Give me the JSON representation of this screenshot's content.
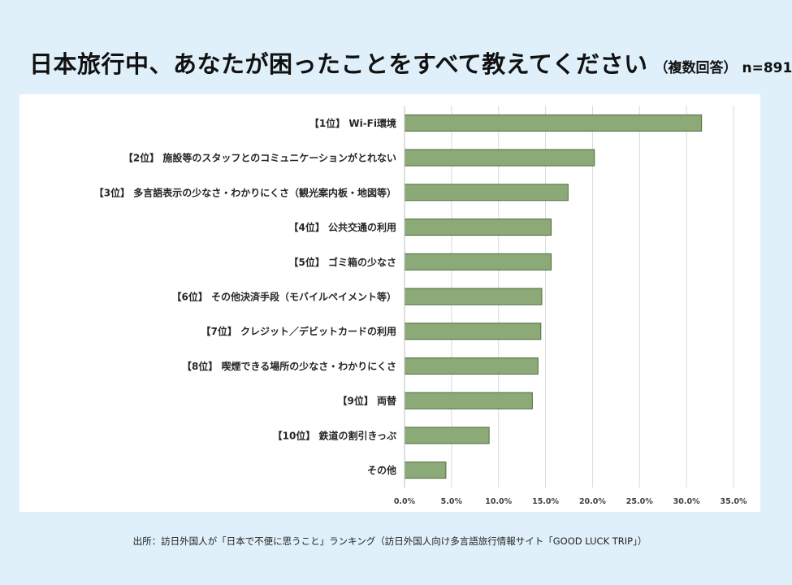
{
  "title": {
    "main": "日本旅行中、あなたが困ったことをすべて教えてください",
    "sub": "（複数回答）",
    "n": "n=891"
  },
  "source": "出所：訪日外国人が「日本で不便に思うこと」ランキング（訪日外国人向け多言語旅行情報サイト「GOOD LUCK TRIP」）",
  "chart_data": {
    "type": "bar",
    "orientation": "horizontal",
    "categories": [
      "【1位】 Wi-Fi環境",
      "【2位】 施設等のスタッフとのコミュニケーションがとれない",
      "【3位】 多言語表示の少なさ・わかりにくさ（観光案内板・地図等）",
      "【4位】 公共交通の利用",
      "【5位】 ゴミ箱の少なさ",
      "【6位】 その他決済手段（モバイルペイメント等）",
      "【7位】 クレジット／デビットカードの利用",
      "【8位】 喫煙できる場所の少なさ・わかりにくさ",
      "【9位】 両替",
      "【10位】 鉄道の割引きっぷ",
      "その他"
    ],
    "values": [
      31.6,
      20.2,
      17.4,
      15.6,
      15.6,
      14.6,
      14.5,
      14.2,
      13.6,
      9.0,
      4.4
    ],
    "ticks": [
      "0.0%",
      "5.0%",
      "10.0%",
      "15.0%",
      "20.0%",
      "25.0%",
      "30.0%",
      "35.0%"
    ],
    "xlim": [
      0,
      35
    ],
    "grid": true,
    "bar_color": "#8caa78",
    "bar_edge_color": "#4d6b3d",
    "xlabel": "",
    "ylabel": ""
  }
}
